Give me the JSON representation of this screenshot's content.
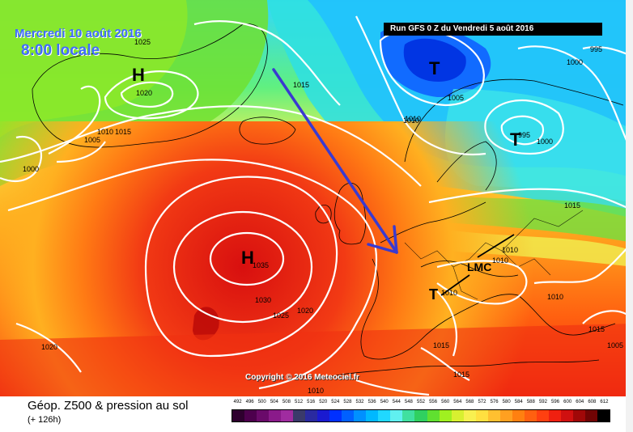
{
  "overlay": {
    "date": "Mercredi 10 août 2016",
    "time": "8:00 locale",
    "run": "Run GFS 0 Z du Vendredi 5 août 2016",
    "copyright": "Copyright © 2016 Meteociel.fr"
  },
  "footer": {
    "title": "Géop. Z500 & pression au sol",
    "subtitle": "(+ 126h)"
  },
  "systems": [
    {
      "letter": "H"
    },
    {
      "letter": "H"
    },
    {
      "letter": "T"
    },
    {
      "letter": "T"
    },
    {
      "letter": "T"
    }
  ],
  "lmc_label": "LMC",
  "isobar_labels": [
    "1025",
    "1020",
    "1015",
    "1010",
    "1005",
    "1000",
    "1010",
    "1015",
    "1035",
    "1030",
    "1025",
    "1020",
    "1020",
    "1010",
    "1015",
    "1005",
    "1010",
    "1000",
    "995",
    "1000",
    "995",
    "1015",
    "1010",
    "1010",
    "1010",
    "1015",
    "1015",
    "1005",
    "1010"
  ],
  "scale": {
    "ticks": [
      "492",
      "496",
      "500",
      "504",
      "508",
      "512",
      "516",
      "520",
      "524",
      "528",
      "532",
      "536",
      "540",
      "544",
      "548",
      "552",
      "556",
      "560",
      "564",
      "568",
      "572",
      "576",
      "580",
      "584",
      "588",
      "592",
      "596",
      "600",
      "604",
      "608",
      "612"
    ],
    "colors": [
      "#2e002e",
      "#4d004d",
      "#6a0a6a",
      "#8a1a8a",
      "#a02ca0",
      "#3a3a6a",
      "#2a2aa0",
      "#1a1ad0",
      "#0030ff",
      "#0060ff",
      "#0090ff",
      "#00b8ff",
      "#20d8ff",
      "#60f0f0",
      "#40e0a0",
      "#30d060",
      "#60e030",
      "#a0f020",
      "#d8f030",
      "#f8f050",
      "#ffe040",
      "#ffc030",
      "#ffa020",
      "#ff8010",
      "#ff6010",
      "#ff4010",
      "#f02010",
      "#d01010",
      "#a00808",
      "#700404",
      "#000000"
    ]
  }
}
